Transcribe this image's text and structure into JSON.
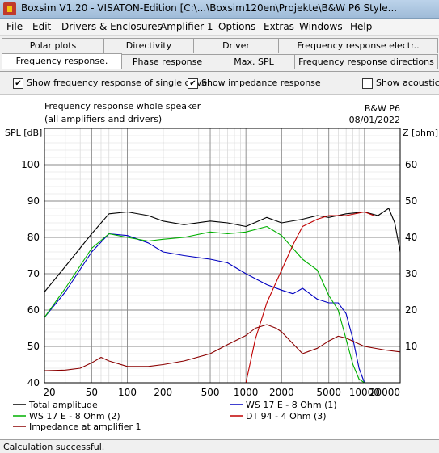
{
  "window": {
    "title": "Boxsim V1.20 - VISATON-Edition [C:\\...\\Boxsim120en\\Projekte\\B&W P6 Style..."
  },
  "menu": [
    "File",
    "Edit",
    "Drivers & Enclosures",
    "Amplifier 1",
    "Options",
    "Extras",
    "Windows",
    "Help"
  ],
  "tabs_row1": [
    "Polar plots",
    "Directivity",
    "Driver",
    "Frequency response electr.."
  ],
  "tabs_row2": [
    "Frequency response.",
    "Phase response",
    "Max. SPL",
    "Frequency response directions"
  ],
  "options": {
    "single_drive": {
      "label": "Show frequency response of single drive",
      "checked": true
    },
    "impedance": {
      "label": "Show impedance response",
      "checked": true
    },
    "acoustic": {
      "label": "Show acoustic p",
      "checked": false
    }
  },
  "plot": {
    "title_line1": "Frequency response whole speaker",
    "title_line2": "(all amplifiers and drivers)",
    "project": "B&W P6",
    "date": "08/01/2022",
    "y_left_label": "SPL [dB]",
    "y_right_label": "Z [ohm]"
  },
  "chart_data": {
    "type": "line",
    "x_scale": "log",
    "xlim": [
      20,
      20000
    ],
    "ylim": [
      40,
      110
    ],
    "y2lim": [
      0,
      70
    ],
    "grid": true,
    "x_ticks": [
      "20",
      "50",
      "100",
      "200",
      "500",
      "1000",
      "2000",
      "5000",
      "10000",
      "20000"
    ],
    "y_ticks": [
      "40",
      "50",
      "60",
      "70",
      "80",
      "90",
      "100"
    ],
    "y2_ticks": [
      "10",
      "20",
      "30",
      "40",
      "50",
      "60"
    ],
    "series": [
      {
        "name": "Total amplitude",
        "color": "#000000",
        "axis": "left",
        "x": [
          20,
          30,
          50,
          70,
          100,
          150,
          200,
          300,
          500,
          700,
          1000,
          1500,
          2000,
          3000,
          4000,
          5000,
          7000,
          10000,
          13000,
          16000,
          18000,
          20000
        ],
        "y": [
          65,
          72,
          81,
          86.5,
          87,
          86,
          84.5,
          83.5,
          84.5,
          84,
          83,
          85.5,
          84,
          85,
          86,
          85.5,
          86.5,
          87,
          86,
          88,
          84,
          76
        ]
      },
      {
        "name": "WS 17 E - 8 Ohm  (1)",
        "color": "#0000c0",
        "axis": "left",
        "x": [
          20,
          30,
          50,
          70,
          100,
          150,
          200,
          300,
          500,
          700,
          1000,
          1500,
          2000,
          2500,
          3000,
          4000,
          5000,
          6000,
          7000,
          8000,
          9000,
          10000,
          12000,
          15000,
          20000
        ],
        "y": [
          58,
          65,
          76,
          81,
          80.5,
          78.5,
          76,
          75,
          74,
          73,
          70,
          67,
          65.5,
          64.5,
          66,
          63,
          62,
          62,
          59,
          52,
          44,
          40,
          40,
          40,
          40
        ]
      },
      {
        "name": "WS 17 E - 8 Ohm  (2)",
        "color": "#00b000",
        "axis": "left",
        "x": [
          20,
          30,
          50,
          70,
          100,
          150,
          200,
          300,
          500,
          700,
          1000,
          1500,
          2000,
          3000,
          4000,
          5000,
          6000,
          7000,
          8000,
          9000,
          10000
        ],
        "y": [
          58,
          66,
          77,
          81,
          80,
          79,
          79.5,
          80,
          81.5,
          81,
          81.5,
          83,
          80.5,
          74,
          71,
          64,
          60,
          52,
          45,
          41,
          40
        ]
      },
      {
        "name": "DT 94 - 4 Ohm (3)",
        "color": "#c00000",
        "axis": "left",
        "x": [
          1000,
          1200,
          1500,
          2000,
          2500,
          3000,
          4000,
          5000,
          7000,
          10000,
          12000
        ],
        "y": [
          40,
          52,
          62,
          71,
          78,
          83,
          85,
          86,
          86,
          87,
          86
        ]
      },
      {
        "name": "Impedance at amplifier 1",
        "color": "#8b0000",
        "axis": "right",
        "x": [
          20,
          30,
          40,
          50,
          60,
          70,
          100,
          150,
          200,
          300,
          500,
          700,
          1000,
          1200,
          1500,
          1800,
          2000,
          3000,
          4000,
          5000,
          6000,
          7000,
          10000,
          15000,
          20000
        ],
        "y": [
          3.3,
          3.5,
          4,
          5.5,
          7,
          6,
          4.5,
          4.5,
          5,
          6,
          8,
          10.5,
          13,
          15,
          16,
          15,
          14,
          8,
          9.5,
          11.5,
          12.8,
          12.3,
          10,
          9,
          8.5
        ]
      }
    ]
  },
  "status": "Calculation successful."
}
